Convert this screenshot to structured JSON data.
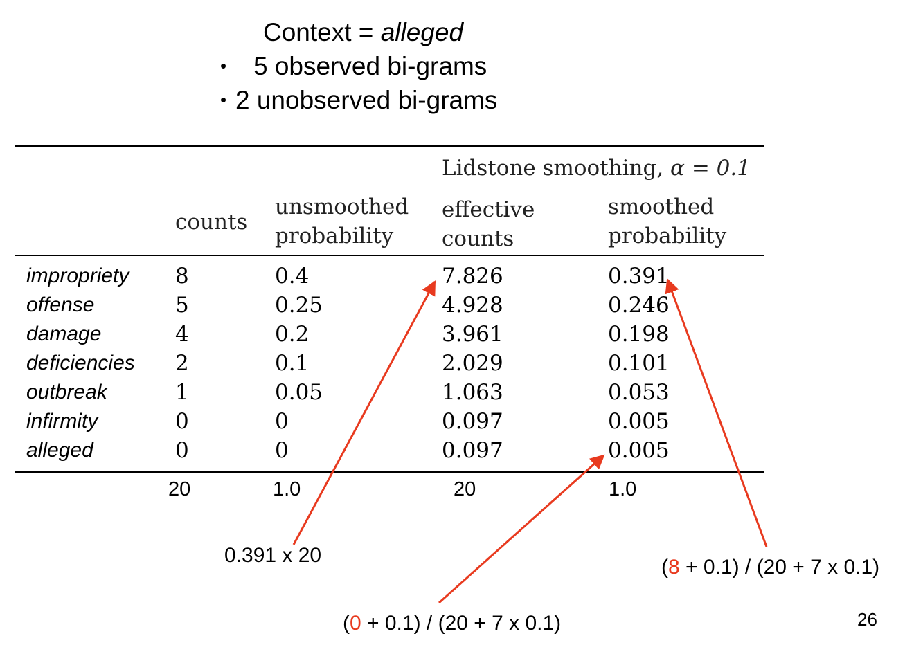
{
  "title": {
    "context_prefix": "Context = ",
    "context_word": "alleged",
    "bullet_1": "5 observed bi-grams",
    "bullet_2": "2 unobserved bi-grams",
    "bullet_glyph": "•"
  },
  "table": {
    "header_group": "Lidstone smoothing, ",
    "header_group_math": "α = 0.1",
    "col_counts": "counts",
    "col_unsmoothed_1": "unsmoothed",
    "col_unsmoothed_2": "probability",
    "col_effective_1": "effective",
    "col_effective_2": "counts",
    "col_smoothed_1": "smoothed",
    "col_smoothed_2": "probability",
    "rows": [
      {
        "word": "impropriety",
        "counts": "8",
        "unsmoothed": "0.4",
        "effective": "7.826",
        "smoothed": "0.391"
      },
      {
        "word": "offense",
        "counts": "5",
        "unsmoothed": "0.25",
        "effective": "4.928",
        "smoothed": "0.246"
      },
      {
        "word": "damage",
        "counts": "4",
        "unsmoothed": "0.2",
        "effective": "3.961",
        "smoothed": "0.198"
      },
      {
        "word": "deficiencies",
        "counts": "2",
        "unsmoothed": "0.1",
        "effective": "2.029",
        "smoothed": "0.101"
      },
      {
        "word": "outbreak",
        "counts": "1",
        "unsmoothed": "0.05",
        "effective": "1.063",
        "smoothed": "0.053"
      },
      {
        "word": "infirmity",
        "counts": "0",
        "unsmoothed": "0",
        "effective": "0.097",
        "smoothed": "0.005"
      },
      {
        "word": "alleged",
        "counts": "0",
        "unsmoothed": "0",
        "effective": "0.097",
        "smoothed": "0.005"
      }
    ],
    "totals": {
      "counts": "20",
      "unsmoothed": "1.0",
      "effective": "20",
      "smoothed": "1.0"
    }
  },
  "annotations": {
    "left": "0.391 x 20",
    "right_open": "(",
    "right_red": "8",
    "right_rest": " + 0.1) / (20 + 7 x 0.1)",
    "bottom_open": "(",
    "bottom_red": "0",
    "bottom_rest": " + 0.1) / (20 + 7 x 0.1)",
    "arrow_color": "#e83a1f"
  },
  "page_number": "26"
}
